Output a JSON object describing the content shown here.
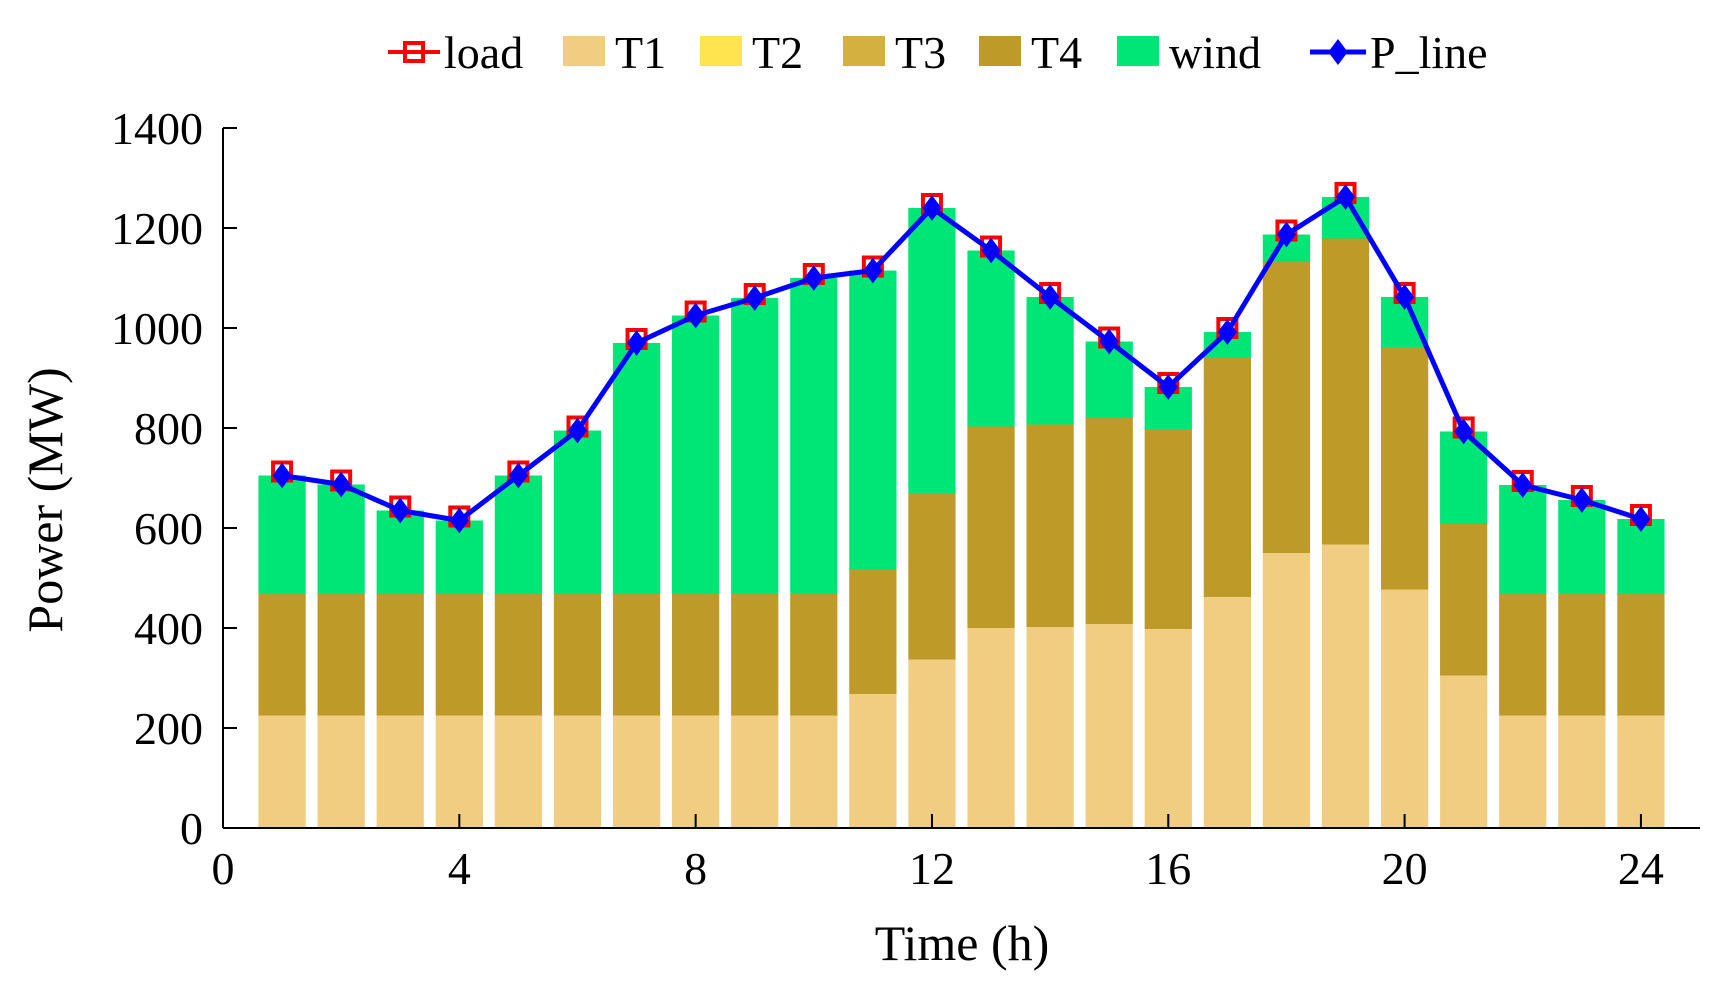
{
  "chart_data": {
    "type": "bar",
    "stacked": true,
    "title": "",
    "xlabel": "Time (h)",
    "ylabel": "Power (MW)",
    "xlim": [
      0,
      25
    ],
    "ylim": [
      0,
      1400
    ],
    "xticks": [
      0,
      4,
      8,
      12,
      16,
      20,
      24
    ],
    "yticks": [
      0,
      200,
      400,
      600,
      800,
      1000,
      1200,
      1400
    ],
    "grid": false,
    "legend_position": "top",
    "x": [
      1,
      2,
      3,
      4,
      5,
      6,
      7,
      8,
      9,
      10,
      11,
      12,
      13,
      14,
      15,
      16,
      17,
      18,
      19,
      20,
      21,
      22,
      23,
      24
    ],
    "series": [
      {
        "name": "T1",
        "kind": "bar",
        "color": "#F0CD80",
        "values": [
          225,
          225,
          225,
          225,
          225,
          225,
          225,
          225,
          225,
          225,
          268,
          337,
          400,
          402,
          408,
          398,
          462,
          550,
          567,
          477,
          305,
          225,
          225,
          225
        ]
      },
      {
        "name": "T2",
        "kind": "bar",
        "color": "#FFE450",
        "values": [
          0,
          0,
          0,
          0,
          0,
          0,
          0,
          0,
          0,
          0,
          0,
          0,
          0,
          0,
          0,
          0,
          0,
          0,
          0,
          0,
          0,
          0,
          0,
          0
        ]
      },
      {
        "name": "T3",
        "kind": "bar",
        "color": "#D4B040",
        "values": [
          0,
          0,
          0,
          0,
          0,
          0,
          0,
          0,
          0,
          0,
          0,
          0,
          0,
          0,
          0,
          0,
          0,
          0,
          0,
          0,
          0,
          0,
          0,
          0
        ]
      },
      {
        "name": "T4",
        "kind": "bar",
        "color": "#BE9A28",
        "values": [
          243,
          243,
          243,
          243,
          243,
          243,
          243,
          243,
          243,
          243,
          250,
          333,
          403,
          405,
          412,
          400,
          478,
          583,
          612,
          485,
          303,
          243,
          243,
          243
        ]
      },
      {
        "name": "wind",
        "kind": "bar",
        "color": "#00E676",
        "values": [
          237,
          219,
          167,
          147,
          237,
          327,
          502,
          557,
          592,
          632,
          597,
          570,
          352,
          255,
          153,
          84,
          52,
          54,
          83,
          100,
          185,
          218,
          188,
          150
        ]
      },
      {
        "name": "load",
        "kind": "line",
        "color": "#FF0000",
        "values": [
          705,
          687,
          635,
          615,
          705,
          795,
          970,
          1025,
          1060,
          1100,
          1115,
          1240,
          1155,
          1062,
          973,
          882,
          992,
          1187,
          1262,
          1062,
          793,
          686,
          656,
          618
        ]
      },
      {
        "name": "P_line",
        "kind": "line",
        "color": "#0000FF",
        "values": [
          705,
          687,
          635,
          615,
          705,
          795,
          970,
          1025,
          1060,
          1100,
          1115,
          1240,
          1155,
          1062,
          973,
          882,
          992,
          1187,
          1262,
          1062,
          793,
          686,
          656,
          618
        ]
      }
    ],
    "legend": [
      {
        "label": "load",
        "color": "#FF0000",
        "kind": "line-square"
      },
      {
        "label": "T1",
        "color": "#F0CD80",
        "kind": "patch"
      },
      {
        "label": "T2",
        "color": "#FFE450",
        "kind": "patch"
      },
      {
        "label": "T3",
        "color": "#D4B040",
        "kind": "patch"
      },
      {
        "label": "T4",
        "color": "#BE9A28",
        "kind": "patch"
      },
      {
        "label": "wind",
        "color": "#00E676",
        "kind": "patch"
      },
      {
        "label": "P_line",
        "color": "#0000FF",
        "kind": "line-diamond"
      }
    ]
  }
}
